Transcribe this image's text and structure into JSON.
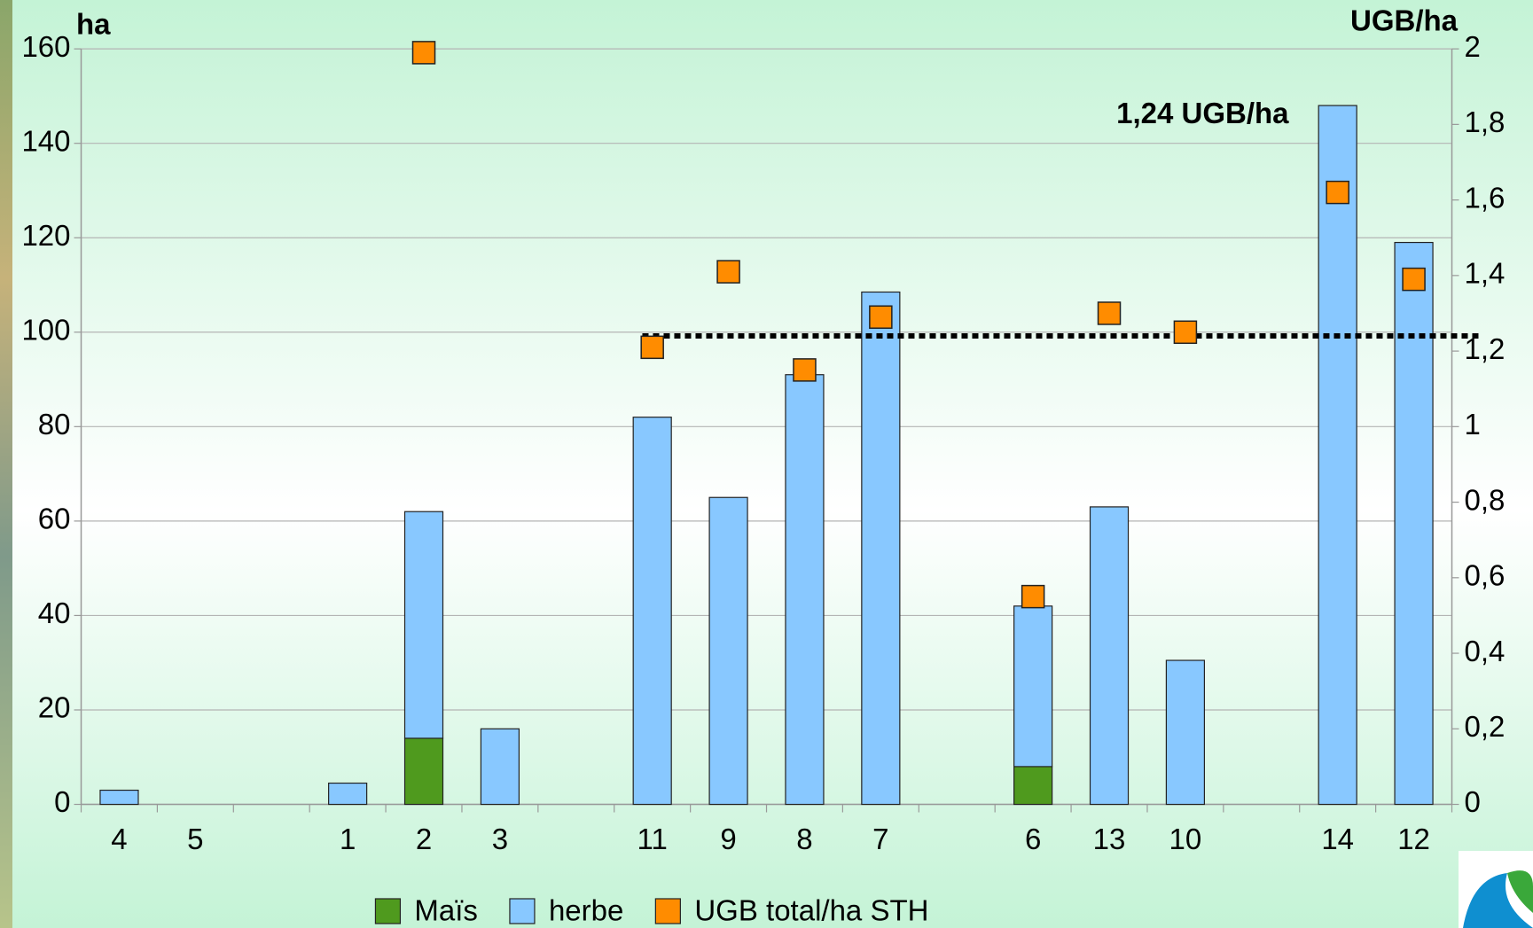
{
  "chart_data": {
    "type": "bar",
    "y_label": "ha",
    "y2_label": "UGB/ha",
    "categories": [
      "4",
      "5",
      null,
      "1",
      "2",
      "3",
      null,
      "11",
      "9",
      "8",
      "7",
      null,
      "6",
      "13",
      "10",
      null,
      "14",
      "12"
    ],
    "series": [
      {
        "name": "Maïs",
        "color": "#4f9a1e",
        "values": [
          0,
          0,
          null,
          0,
          14,
          0,
          null,
          0,
          0,
          0,
          0,
          null,
          8,
          0,
          0,
          null,
          0,
          0
        ]
      },
      {
        "name": "herbe",
        "color": "#88c8ff",
        "values": [
          3,
          0,
          null,
          4.5,
          48,
          16,
          null,
          82,
          65,
          91,
          108.5,
          null,
          34,
          63,
          30.5,
          null,
          148,
          119
        ]
      },
      {
        "name": "UGB total/ha STH",
        "color": "#ff8c00",
        "axis": "y2",
        "type": "scatter",
        "values": [
          null,
          null,
          null,
          null,
          1.99,
          null,
          null,
          1.21,
          1.41,
          1.15,
          1.29,
          null,
          0.55,
          1.3,
          1.25,
          null,
          1.62,
          1.39
        ]
      }
    ],
    "reference_line": {
      "value": 1.24,
      "label": "1,24 UGB/ha"
    },
    "ylim": [
      0,
      160
    ],
    "yticks": [
      0,
      20,
      40,
      60,
      80,
      100,
      120,
      140,
      160
    ],
    "y2lim": [
      0,
      2
    ],
    "y2ticks": [
      0,
      {
        "value": 0.2,
        "label": "0,2"
      },
      {
        "value": 0.4,
        "label": "0,4"
      },
      {
        "value": 0.6,
        "label": "0,6"
      },
      {
        "value": 0.8,
        "label": "0,8"
      },
      1,
      {
        "value": 1.2,
        "label": "1,2"
      },
      {
        "value": 1.4,
        "label": "1,4"
      },
      {
        "value": 1.6,
        "label": "1,6"
      },
      {
        "value": 1.8,
        "label": "1,8"
      },
      2
    ],
    "grid": true,
    "legend": "bottom"
  }
}
